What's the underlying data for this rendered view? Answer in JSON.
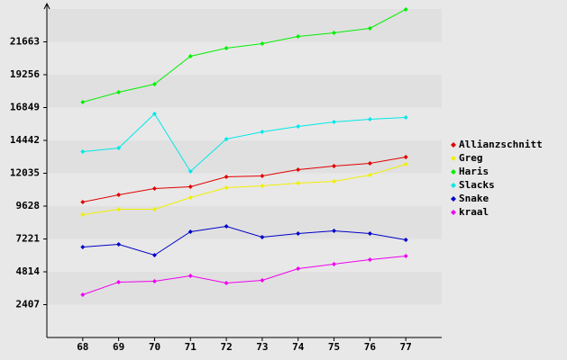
{
  "chart_data": {
    "type": "line",
    "categories": [
      "68",
      "69",
      "70",
      "71",
      "72",
      "73",
      "74",
      "75",
      "76",
      "77"
    ],
    "ylim": [
      0,
      24070
    ],
    "yticks": [
      2407,
      4814,
      7221,
      9628,
      12035,
      14442,
      16849,
      19256,
      21663
    ],
    "legend": "right",
    "series": [
      {
        "name": "Allianzschnitt",
        "color": "#e00000",
        "values": [
          9925,
          10453,
          10914,
          11046,
          11772,
          11838,
          12300,
          12563,
          12761,
          13223
        ]
      },
      {
        "name": "Greg",
        "color": "#f0f000",
        "values": [
          9002,
          9398,
          9398,
          10255,
          10980,
          11113,
          11310,
          11442,
          11904,
          12695
        ]
      },
      {
        "name": "Haris",
        "color": "#00f000",
        "values": [
          17246,
          17971,
          18564,
          20609,
          21202,
          21532,
          22060,
          22324,
          22654,
          24038
        ]
      },
      {
        "name": "Slacks",
        "color": "#00e8e8",
        "values": [
          13619,
          13882,
          16389,
          12168,
          14542,
          15069,
          15465,
          15795,
          15993,
          16125
        ]
      },
      {
        "name": "Snake",
        "color": "#0000c8",
        "values": [
          6628,
          6826,
          6034,
          7749,
          8145,
          7353,
          7617,
          7815,
          7617,
          7156
        ]
      },
      {
        "name": "kraal",
        "color": "#f000f0",
        "values": [
          3133,
          4056,
          4122,
          4518,
          3990,
          4188,
          5045,
          5375,
          5705,
          5968
        ]
      }
    ]
  }
}
